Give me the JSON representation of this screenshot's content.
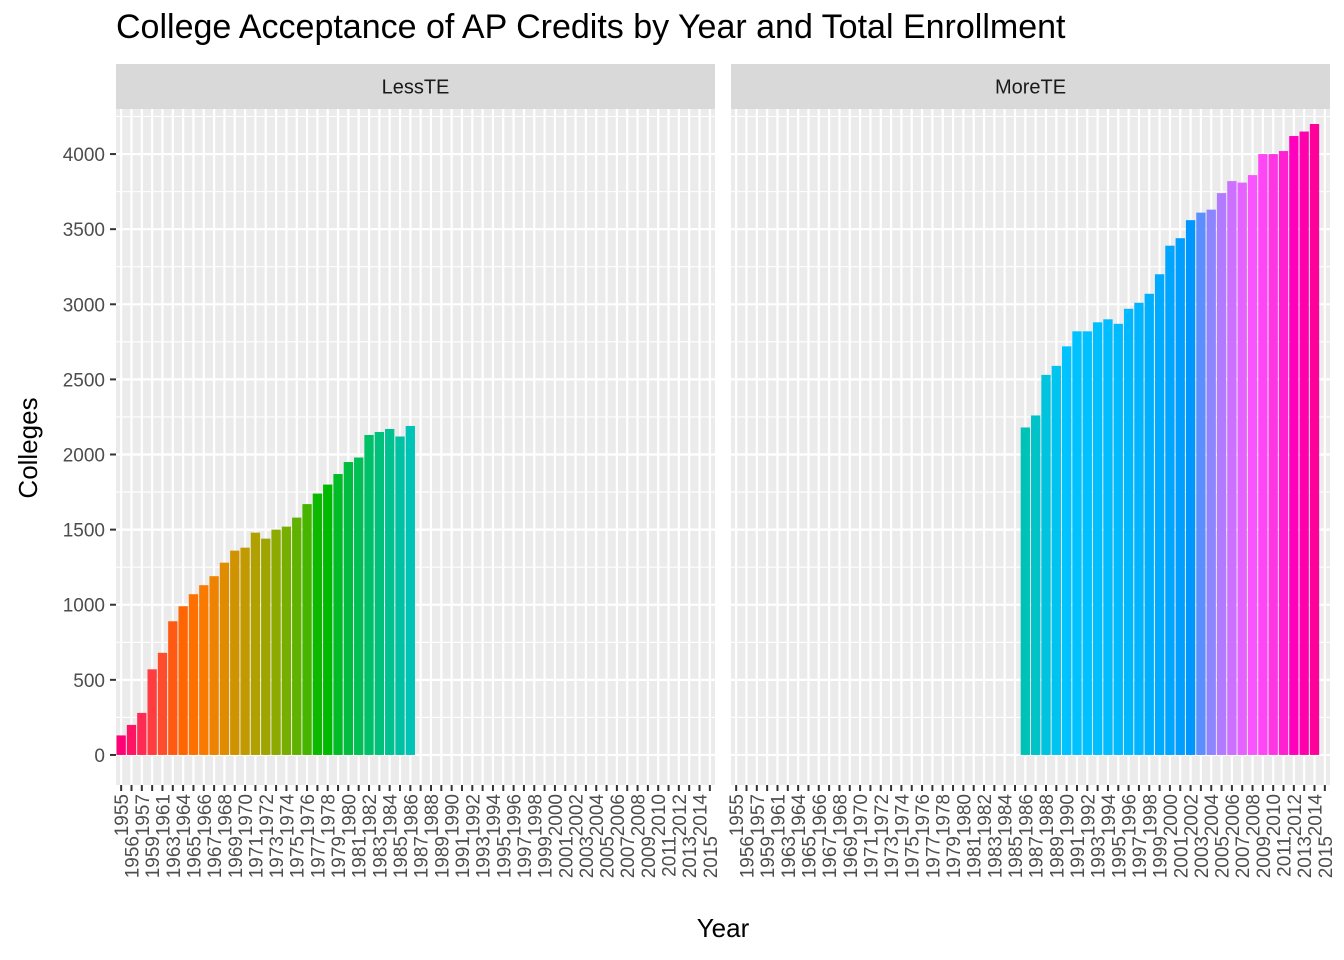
{
  "chart_data": {
    "type": "bar",
    "title": "College Acceptance of AP Credits by Year and Total Enrollment",
    "xlabel": "Year",
    "ylabel": "Colleges",
    "ylim": [
      -200,
      4300
    ],
    "yticks": [
      0,
      500,
      1000,
      1500,
      2000,
      2500,
      3000,
      3500,
      4000
    ],
    "categories": [
      "1955",
      "1956",
      "1957",
      "1959",
      "1961",
      "1963",
      "1964",
      "1965",
      "1966",
      "1967",
      "1968",
      "1969",
      "1970",
      "1971",
      "1972",
      "1973",
      "1974",
      "1975",
      "1976",
      "1977",
      "1978",
      "1979",
      "1980",
      "1981",
      "1982",
      "1983",
      "1984",
      "1985",
      "1986",
      "1987",
      "1988",
      "1989",
      "1990",
      "1991",
      "1992",
      "1993",
      "1994",
      "1995",
      "1996",
      "1997",
      "1998",
      "1999",
      "2000",
      "2001",
      "2002",
      "2003",
      "2004",
      "2005",
      "2006",
      "2007",
      "2008",
      "2009",
      "2010",
      "2011",
      "2012",
      "2013",
      "2014",
      "2015"
    ],
    "legend": "none",
    "grid": true,
    "facets": [
      {
        "name": "LessTE",
        "values": [
          130,
          200,
          280,
          570,
          680,
          890,
          990,
          1070,
          1130,
          1190,
          1280,
          1360,
          1380,
          1480,
          1440,
          1500,
          1520,
          1580,
          1670,
          1740,
          1800,
          1870,
          1950,
          1980,
          2130,
          2150,
          2170,
          2120,
          2190,
          null,
          null,
          null,
          null,
          null,
          null,
          null,
          null,
          null,
          null,
          null,
          null,
          null,
          null,
          null,
          null,
          null,
          null,
          null,
          null,
          null,
          null,
          null,
          null,
          null,
          null,
          null,
          null,
          null
        ]
      },
      {
        "name": "MoreTE",
        "values": [
          null,
          null,
          null,
          null,
          null,
          null,
          null,
          null,
          null,
          null,
          null,
          null,
          null,
          null,
          null,
          null,
          null,
          null,
          null,
          null,
          null,
          null,
          null,
          null,
          null,
          null,
          null,
          null,
          2180,
          2260,
          2530,
          2590,
          2720,
          2820,
          2820,
          2880,
          2900,
          2870,
          2970,
          3010,
          3070,
          3200,
          3390,
          3440,
          3560,
          3610,
          3630,
          3740,
          3820,
          3810,
          3860,
          4000,
          4000,
          4020,
          4120,
          4150,
          4200,
          null
        ]
      }
    ]
  }
}
